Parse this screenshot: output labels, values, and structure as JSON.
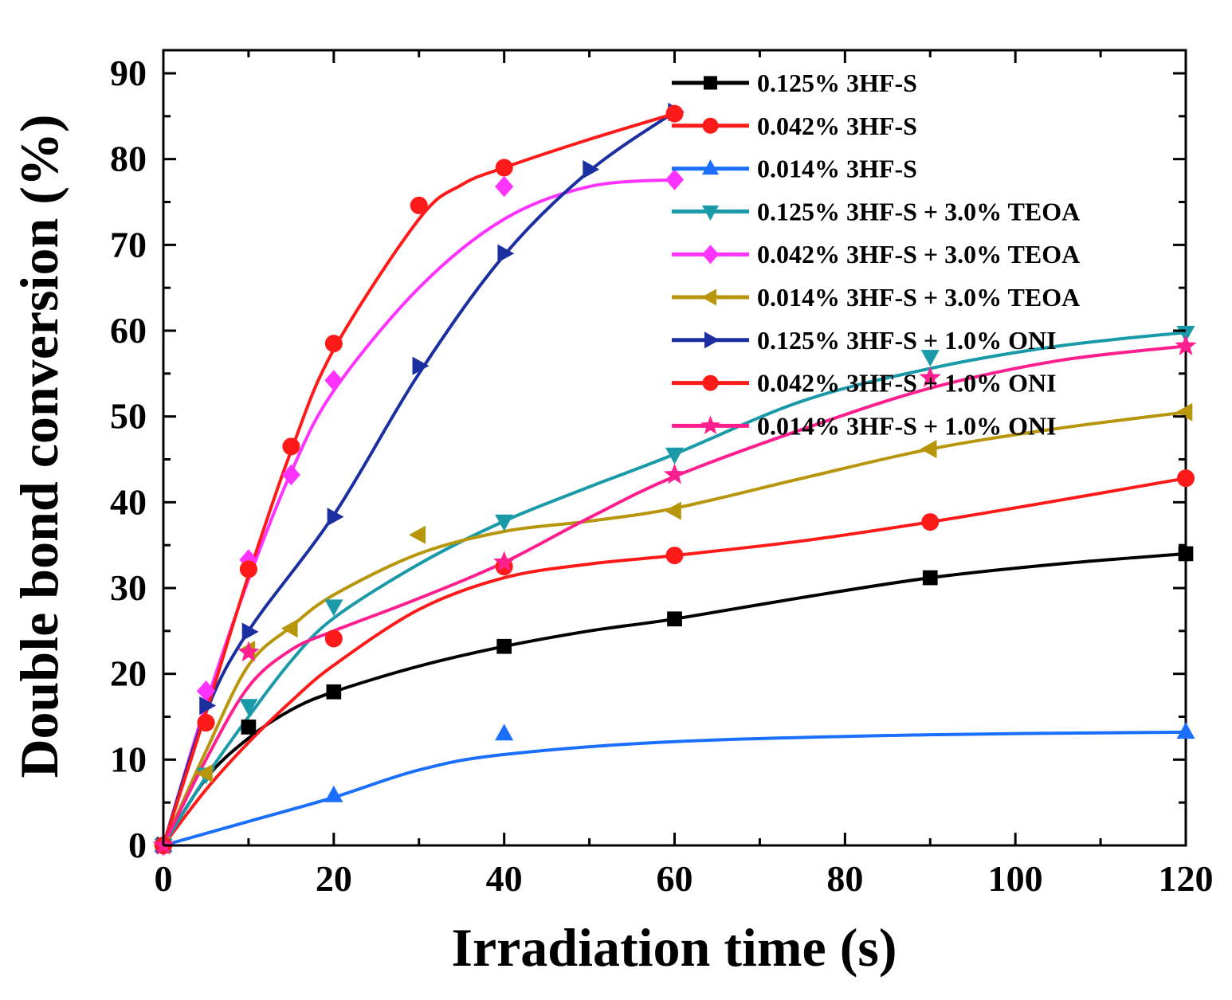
{
  "chart_data": {
    "type": "line",
    "title": "",
    "xlabel": "Irradiation time (s)",
    "ylabel": "Double bond conversion (%)",
    "xlim": [
      0,
      120
    ],
    "ylim": [
      0,
      90
    ],
    "xticks": [
      0,
      20,
      40,
      60,
      80,
      100,
      120
    ],
    "yticks": [
      0,
      10,
      20,
      30,
      40,
      50,
      60,
      70,
      80,
      90
    ],
    "x_tick_labels": [
      "0",
      "20",
      "40",
      "60",
      "80",
      "100",
      "120"
    ],
    "y_tick_labels": [
      "0",
      "10",
      "20",
      "30",
      "40",
      "50",
      "60",
      "70",
      "80",
      "90"
    ],
    "grid": false,
    "legend_position": "top-right",
    "series": [
      {
        "name": "0.125% 3HF-S",
        "color": "#000000",
        "marker": "square",
        "x": [
          0,
          10,
          20,
          40,
          60,
          90,
          120
        ],
        "y": [
          0,
          13.8,
          17.9,
          23.2,
          26.4,
          31.2,
          34.0
        ],
        "curve": [
          [
            0,
            0
          ],
          [
            5,
            7.8
          ],
          [
            10,
            12.5
          ],
          [
            15,
            15.8
          ],
          [
            20,
            17.9
          ],
          [
            30,
            20.9
          ],
          [
            40,
            23.2
          ],
          [
            50,
            25.0
          ],
          [
            60,
            26.4
          ],
          [
            75,
            28.9
          ],
          [
            90,
            31.2
          ],
          [
            105,
            32.8
          ],
          [
            120,
            34.0
          ]
        ]
      },
      {
        "name": "0.042% 3HF-S",
        "color": "#ff1a1a",
        "marker": "circle",
        "x": [
          0,
          5,
          10,
          20,
          40,
          60,
          90,
          120
        ],
        "y": [
          0,
          14.3,
          32.2,
          24.1,
          32.5,
          33.8,
          37.7,
          42.8
        ],
        "curve": [
          [
            0,
            0
          ],
          [
            5,
            6.5
          ],
          [
            10,
            12.0
          ],
          [
            15,
            16.8
          ],
          [
            20,
            21.0
          ],
          [
            30,
            27.5
          ],
          [
            40,
            31.2
          ],
          [
            50,
            32.8
          ],
          [
            60,
            33.8
          ],
          [
            75,
            35.5
          ],
          [
            90,
            37.7
          ],
          [
            105,
            40.2
          ],
          [
            120,
            42.8
          ]
        ]
      },
      {
        "name": "0.014% 3HF-S",
        "color": "#1a6fff",
        "marker": "triangle-up",
        "x": [
          0,
          20,
          40,
          120
        ],
        "y": [
          0,
          5.8,
          13.0,
          13.2
        ],
        "curve": [
          [
            0,
            0
          ],
          [
            10,
            2.8
          ],
          [
            20,
            5.6
          ],
          [
            30,
            8.8
          ],
          [
            40,
            10.6
          ],
          [
            60,
            12.1
          ],
          [
            90,
            12.9
          ],
          [
            120,
            13.2
          ]
        ]
      },
      {
        "name": "0.125% 3HF-S + 3.0% TEOA",
        "color": "#1a9aa8",
        "marker": "triangle-down",
        "x": [
          0,
          5,
          10,
          20,
          40,
          60,
          90,
          120
        ],
        "y": [
          0,
          8.3,
          16.3,
          27.9,
          37.8,
          45.6,
          57.0,
          59.8
        ],
        "curve": [
          [
            0,
            0
          ],
          [
            5,
            8.0
          ],
          [
            10,
            15.0
          ],
          [
            15,
            21.5
          ],
          [
            20,
            26.5
          ],
          [
            30,
            32.8
          ],
          [
            40,
            37.8
          ],
          [
            50,
            41.8
          ],
          [
            60,
            45.6
          ],
          [
            75,
            51.8
          ],
          [
            90,
            55.6
          ],
          [
            105,
            58.2
          ],
          [
            120,
            59.8
          ]
        ]
      },
      {
        "name": "0.042% 3HF-S + 3.0% TEOA",
        "color": "#ff33ff",
        "marker": "diamond",
        "x": [
          0,
          5,
          10,
          15,
          20,
          40,
          60
        ],
        "y": [
          0,
          18.0,
          33.3,
          43.2,
          54.2,
          76.8,
          77.6
        ],
        "curve": [
          [
            0,
            0
          ],
          [
            5,
            16.5
          ],
          [
            10,
            31.0
          ],
          [
            15,
            43.5
          ],
          [
            20,
            53.0
          ],
          [
            30,
            65.0
          ],
          [
            40,
            73.0
          ],
          [
            50,
            76.8
          ],
          [
            60,
            77.6
          ]
        ]
      },
      {
        "name": "0.014% 3HF-S + 3.0% TEOA",
        "color": "#b8960c",
        "marker": "triangle-left",
        "x": [
          0,
          5,
          10,
          15,
          30,
          60,
          90,
          120
        ],
        "y": [
          0,
          8.4,
          22.8,
          25.3,
          36.2,
          39.0,
          46.2,
          50.5
        ],
        "curve": [
          [
            0,
            0
          ],
          [
            5,
            11.0
          ],
          [
            10,
            21.0
          ],
          [
            15,
            25.5
          ],
          [
            20,
            29.2
          ],
          [
            30,
            34.0
          ],
          [
            40,
            36.6
          ],
          [
            50,
            37.8
          ],
          [
            60,
            39.3
          ],
          [
            75,
            42.8
          ],
          [
            90,
            46.2
          ],
          [
            105,
            48.6
          ],
          [
            120,
            50.5
          ]
        ]
      },
      {
        "name": "0.125% 3HF-S + 1.0% ONI",
        "color": "#1c2fa0",
        "marker": "triangle-right",
        "x": [
          0,
          5,
          10,
          20,
          30,
          40,
          50,
          60
        ],
        "y": [
          0,
          16.3,
          24.9,
          38.3,
          55.9,
          69.0,
          78.8,
          85.5
        ],
        "curve": [
          [
            0,
            0
          ],
          [
            5,
            15.5
          ],
          [
            10,
            25.0
          ],
          [
            20,
            38.5
          ],
          [
            30,
            55.0
          ],
          [
            40,
            68.8
          ],
          [
            50,
            78.6
          ],
          [
            60,
            85.5
          ]
        ]
      },
      {
        "name": "0.042% 3HF-S + 1.0% ONI",
        "color": "#ff1a1a",
        "marker": "circle",
        "x": [
          0,
          5,
          10,
          15,
          20,
          30,
          40,
          60
        ],
        "y": [
          0,
          14.3,
          32.2,
          46.5,
          58.5,
          74.6,
          79.0,
          85.3
        ],
        "curve": [
          [
            0,
            0
          ],
          [
            5,
            15.5
          ],
          [
            10,
            31.5
          ],
          [
            15,
            46.0
          ],
          [
            20,
            57.8
          ],
          [
            30,
            73.0
          ],
          [
            35,
            77.0
          ],
          [
            40,
            79.0
          ],
          [
            50,
            82.3
          ],
          [
            60,
            85.3
          ]
        ]
      },
      {
        "name": "0.014% 3HF-S + 1.0% ONI",
        "color": "#ff1f8f",
        "marker": "star",
        "x": [
          0,
          10,
          40,
          60,
          90,
          120
        ],
        "y": [
          0,
          22.5,
          33.0,
          43.2,
          54.5,
          58.2
        ],
        "curve": [
          [
            0,
            0
          ],
          [
            5,
            10.0
          ],
          [
            10,
            18.5
          ],
          [
            15,
            22.8
          ],
          [
            20,
            25.0
          ],
          [
            30,
            28.8
          ],
          [
            40,
            33.0
          ],
          [
            50,
            38.2
          ],
          [
            60,
            43.0
          ],
          [
            75,
            48.5
          ],
          [
            90,
            53.3
          ],
          [
            105,
            56.5
          ],
          [
            120,
            58.2
          ]
        ]
      }
    ]
  }
}
